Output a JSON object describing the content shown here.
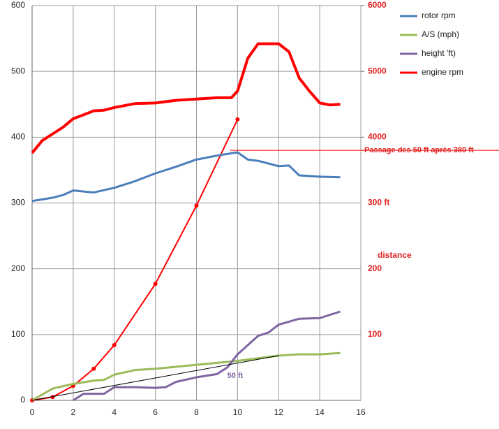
{
  "chart_data": {
    "type": "line",
    "xlim": [
      0,
      16
    ],
    "xticks": [
      0,
      2,
      4,
      6,
      8,
      10,
      12,
      14,
      16
    ],
    "ylim": [
      0,
      600
    ],
    "yticks": [
      0,
      100,
      200,
      300,
      400,
      500,
      600
    ],
    "y2lim": [
      0,
      6000
    ],
    "y2ticks": [
      4000,
      5000,
      6000
    ],
    "grid": true,
    "legend": "upper right",
    "series": [
      {
        "name": "rotor rpm",
        "color": "#4a7ebb",
        "x": [
          0,
          1,
          1.5,
          2,
          3,
          4,
          5,
          6,
          7,
          8,
          9,
          10,
          10.5,
          11,
          12,
          12.5,
          13,
          14,
          15
        ],
        "values": [
          303,
          308,
          312,
          319,
          316,
          323,
          333,
          345,
          355,
          366,
          372,
          377,
          366,
          364,
          356,
          357,
          342,
          340,
          339
        ]
      },
      {
        "name": "A/S (mph)",
        "color": "#9bbb59",
        "x": [
          0,
          1,
          2,
          3,
          3.5,
          4,
          5,
          6,
          7,
          8,
          9,
          10,
          11,
          12,
          13,
          14,
          15
        ],
        "values": [
          0,
          18,
          25,
          30,
          31,
          39,
          46,
          48,
          51,
          54,
          57,
          60,
          64,
          68,
          70,
          70,
          72
        ]
      },
      {
        "name": "height 'ft)",
        "color": "#8064a2",
        "x": [
          2,
          2.5,
          3.5,
          4,
          5,
          6,
          6.5,
          7,
          8,
          9,
          9.5,
          10,
          11,
          11.5,
          12,
          13,
          14,
          15
        ],
        "values": [
          0,
          10,
          10,
          20,
          20,
          19,
          20,
          28,
          35,
          40,
          50,
          70,
          98,
          103,
          115,
          124,
          125,
          135
        ]
      },
      {
        "name": "engine rpm",
        "color": "#ff0000",
        "axis": "y2",
        "x": [
          0,
          0.5,
          1,
          1.5,
          2,
          3,
          3.5,
          4,
          5,
          6,
          7,
          8,
          9,
          9.7,
          10,
          10.5,
          11,
          12,
          12.5,
          13,
          13.5,
          14,
          14.5,
          15
        ],
        "values": [
          3760,
          3950,
          4050,
          4150,
          4280,
          4400,
          4410,
          4450,
          4510,
          4520,
          4560,
          4580,
          4600,
          4600,
          4700,
          5200,
          5420,
          5420,
          5300,
          4900,
          4700,
          4520,
          4490,
          4500
        ]
      }
    ],
    "distance": {
      "color": "#ff0000",
      "x": [
        0,
        1,
        2,
        3,
        4,
        6,
        8,
        10
      ],
      "values": [
        0,
        5,
        22,
        48,
        84,
        177,
        296,
        427
      ]
    },
    "trendline": {
      "color": "#000000",
      "x": [
        0,
        12
      ],
      "values": [
        0,
        68
      ]
    },
    "distance_ticks": [
      100,
      200,
      {
        "value": 300,
        "label": "300 ft"
      }
    ],
    "distance_label": "distance",
    "threshold": {
      "value": 380,
      "label": "Passage des 50 ft après 380 ft"
    },
    "height_note": {
      "x": 9.5,
      "y": 37,
      "label": "50 ft"
    }
  }
}
